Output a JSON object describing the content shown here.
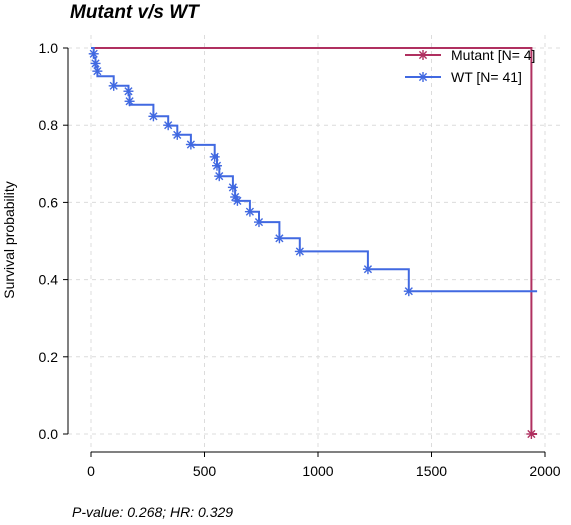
{
  "chart_data": {
    "type": "line",
    "title": "Mutant v/s WT",
    "xlabel": "",
    "ylabel": "Survival probability",
    "xlim": [
      0,
      2000
    ],
    "ylim": [
      0,
      1
    ],
    "xticks": [
      0,
      500,
      1000,
      1500,
      2000
    ],
    "yticks": [
      "0.0",
      "0.2",
      "0.4",
      "0.6",
      "0.8",
      "1.0"
    ],
    "grid": true,
    "legend_position": "top-right",
    "series": [
      {
        "name": "Mutant [N= 4]",
        "color": "#b03060",
        "steps": [
          [
            0,
            1.0
          ],
          [
            1940,
            1.0
          ],
          [
            1940,
            0.0
          ],
          [
            1965,
            0.0
          ]
        ],
        "censor_points": [
          [
            1940,
            0.0
          ]
        ]
      },
      {
        "name": "WT [N= 41]",
        "color": "#4169e1",
        "steps": [
          [
            0,
            1.0
          ],
          [
            12,
            1.0
          ],
          [
            12,
            0.975
          ],
          [
            20,
            0.975
          ],
          [
            20,
            0.951
          ],
          [
            28,
            0.951
          ],
          [
            28,
            0.927
          ],
          [
            100,
            0.927
          ],
          [
            100,
            0.902
          ],
          [
            165,
            0.902
          ],
          [
            165,
            0.878
          ],
          [
            170,
            0.878
          ],
          [
            170,
            0.853
          ],
          [
            275,
            0.853
          ],
          [
            275,
            0.823
          ],
          [
            340,
            0.823
          ],
          [
            340,
            0.799
          ],
          [
            380,
            0.799
          ],
          [
            380,
            0.775
          ],
          [
            440,
            0.775
          ],
          [
            440,
            0.749
          ],
          [
            545,
            0.749
          ],
          [
            545,
            0.722
          ],
          [
            555,
            0.722
          ],
          [
            555,
            0.695
          ],
          [
            565,
            0.695
          ],
          [
            565,
            0.668
          ],
          [
            625,
            0.668
          ],
          [
            625,
            0.641
          ],
          [
            635,
            0.641
          ],
          [
            635,
            0.614
          ],
          [
            645,
            0.614
          ],
          [
            645,
            0.604
          ],
          [
            700,
            0.604
          ],
          [
            700,
            0.576
          ],
          [
            740,
            0.576
          ],
          [
            740,
            0.549
          ],
          [
            830,
            0.549
          ],
          [
            830,
            0.507
          ],
          [
            920,
            0.507
          ],
          [
            920,
            0.473
          ],
          [
            1220,
            0.473
          ],
          [
            1220,
            0.427
          ],
          [
            1400,
            0.427
          ],
          [
            1400,
            0.37
          ],
          [
            1965,
            0.37
          ]
        ],
        "censor_points": [
          [
            12,
            0.985
          ],
          [
            20,
            0.96
          ],
          [
            28,
            0.94
          ],
          [
            100,
            0.902
          ],
          [
            165,
            0.888
          ],
          [
            170,
            0.862
          ],
          [
            275,
            0.823
          ],
          [
            340,
            0.8
          ],
          [
            380,
            0.775
          ],
          [
            440,
            0.75
          ],
          [
            545,
            0.718
          ],
          [
            555,
            0.695
          ],
          [
            565,
            0.668
          ],
          [
            625,
            0.639
          ],
          [
            635,
            0.614
          ],
          [
            645,
            0.604
          ],
          [
            700,
            0.576
          ],
          [
            740,
            0.549
          ],
          [
            830,
            0.507
          ],
          [
            920,
            0.473
          ],
          [
            1220,
            0.427
          ],
          [
            1400,
            0.37
          ]
        ]
      }
    ],
    "footnote": "P-value: 0.268; HR: 0.329"
  }
}
